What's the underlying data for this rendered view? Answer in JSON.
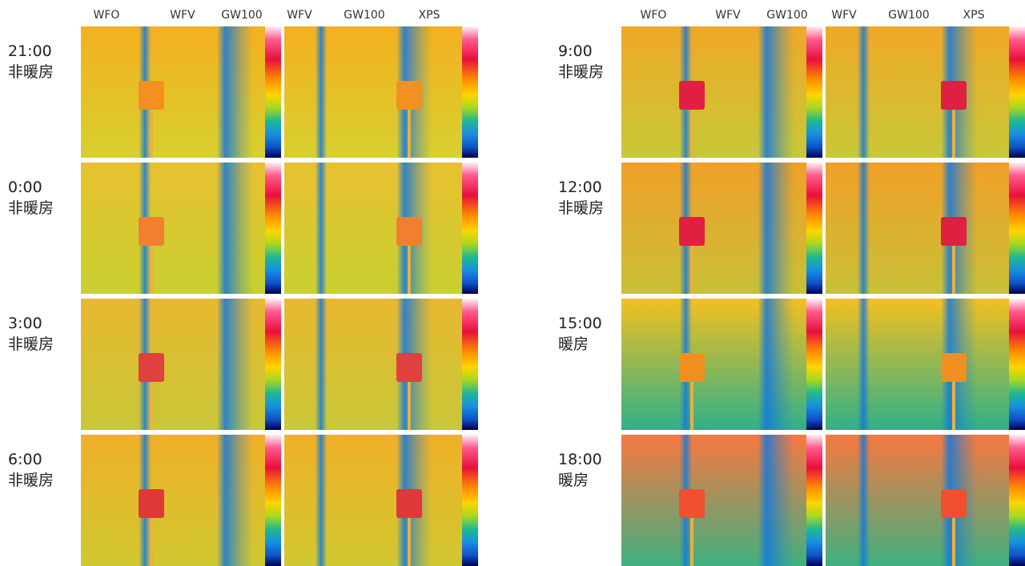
{
  "panels": [
    {
      "headers": [
        "WFO",
        "WFV",
        "GW100",
        "WFV",
        "GW100",
        "XPS"
      ],
      "rows": [
        {
          "time": "21:00",
          "state": "非暖房"
        },
        {
          "time": "0:00",
          "state": "非暖房"
        },
        {
          "time": "3:00",
          "state": "非暖房"
        },
        {
          "time": "6:00",
          "state": "非暖房"
        }
      ]
    },
    {
      "headers": [
        "WFO",
        "WFV",
        "GW100",
        "WFV",
        "GW100",
        "XPS"
      ],
      "rows": [
        {
          "time": "9:00",
          "state": "非暖房"
        },
        {
          "time": "12:00",
          "state": "非暖房"
        },
        {
          "time": "15:00",
          "state": "暖房"
        },
        {
          "time": "18:00",
          "state": "暖房"
        }
      ]
    }
  ]
}
